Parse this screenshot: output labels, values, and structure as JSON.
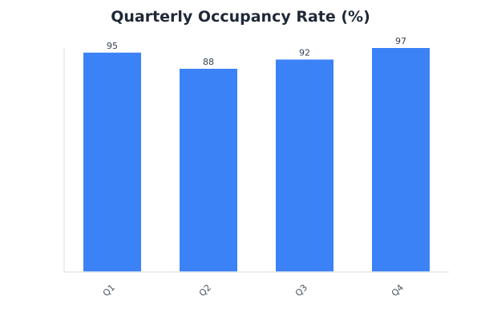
{
  "chart_data": {
    "type": "bar",
    "title": "Quarterly Occupancy Rate (%)",
    "xlabel": "",
    "ylabel": "",
    "categories": [
      "Q1",
      "Q2",
      "Q3",
      "Q4"
    ],
    "values": [
      95,
      88,
      92,
      97
    ],
    "ylim": [
      0,
      97
    ],
    "grid": false,
    "legend": "none",
    "colors": {
      "bar": "#3b82f6",
      "axis": "#e5e7eb",
      "title": "#1f2937",
      "label": "#374151"
    }
  }
}
